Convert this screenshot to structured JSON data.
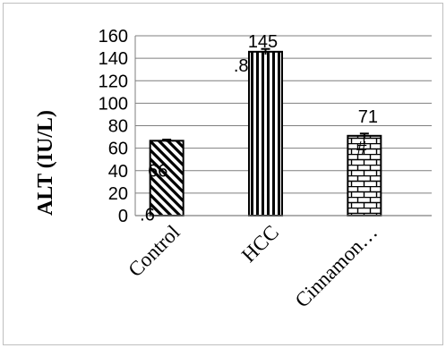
{
  "chart_data": {
    "type": "bar",
    "ylabel": "ALT (IU/L)",
    "ylim": [
      0,
      160
    ],
    "yticks": [
      0,
      20,
      40,
      60,
      80,
      100,
      120,
      140,
      160
    ],
    "grid": true,
    "categories": [
      "Control",
      "HCC",
      "Cinnamon…"
    ],
    "values": [
      66.6,
      145.8,
      71
    ],
    "errors": [
      1,
      2.5,
      2
    ],
    "data_labels": [
      [
        "66",
        ".6"
      ],
      [
        "145",
        ".8"
      ],
      [
        "71",
        "#"
      ]
    ],
    "patterns": [
      "diagonal-stripes",
      "vertical-stripes",
      "brick"
    ]
  }
}
